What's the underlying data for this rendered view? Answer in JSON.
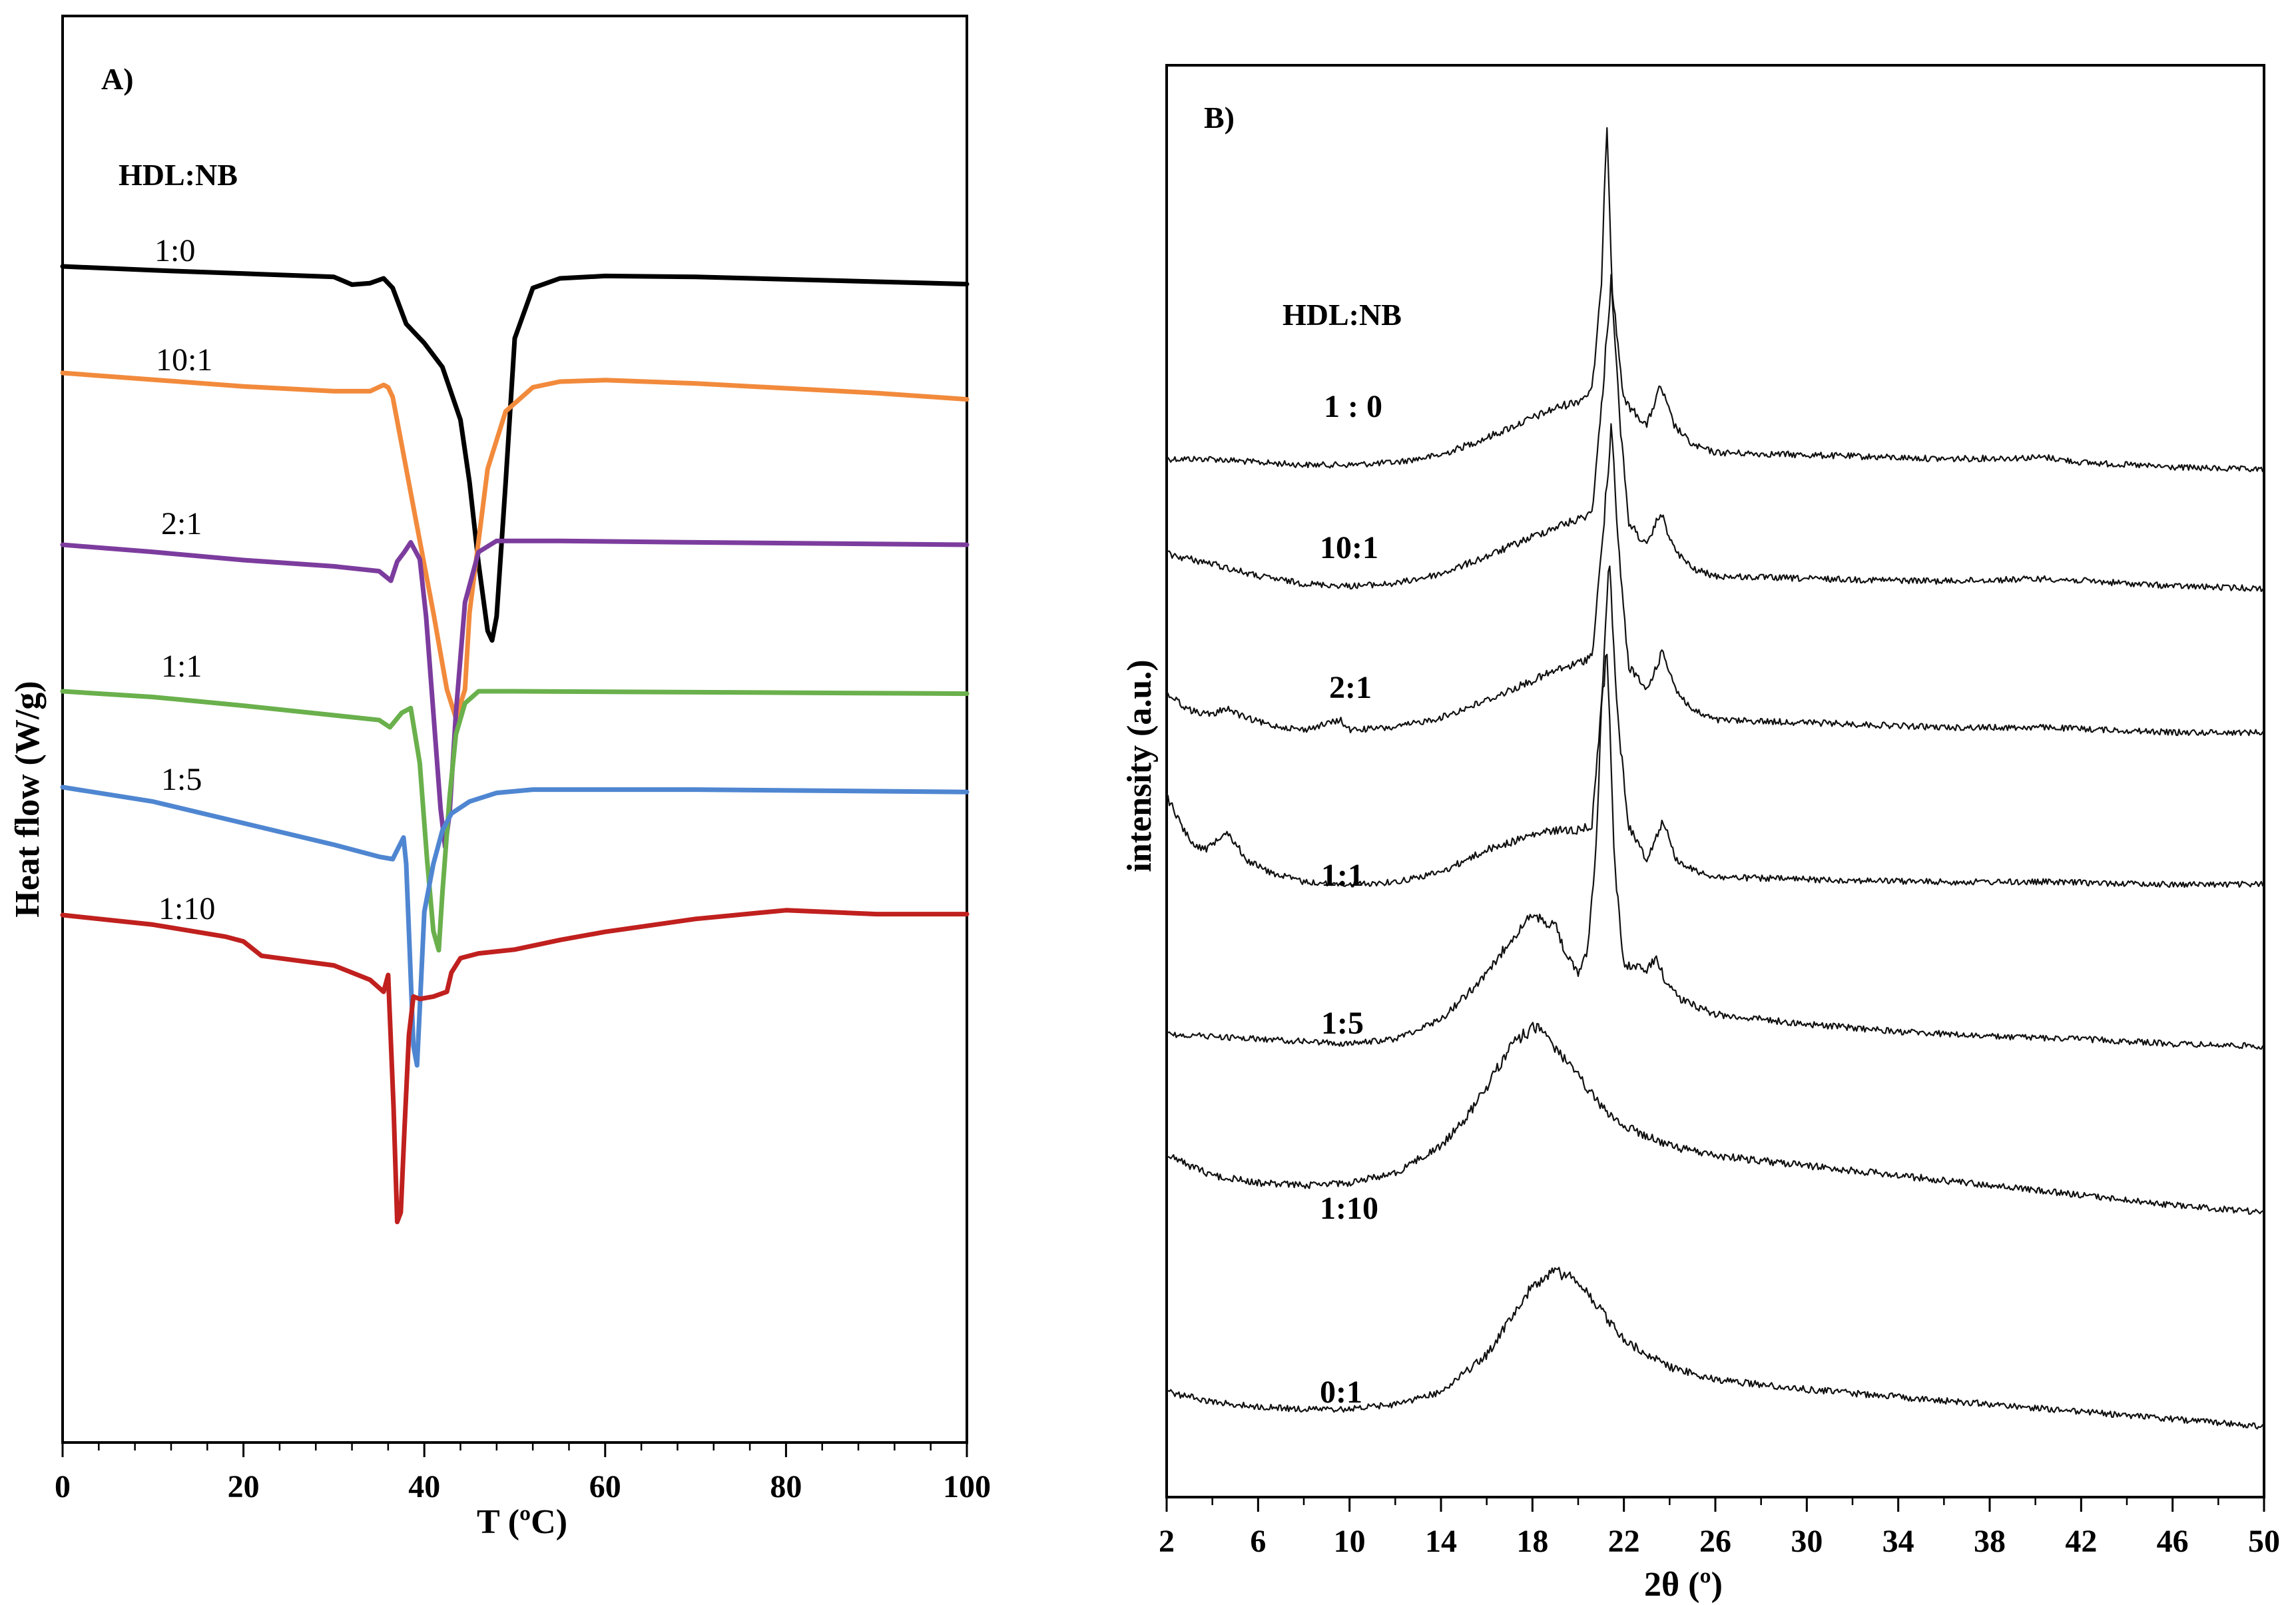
{
  "chart_data": [
    {
      "type": "line",
      "panel": "A)",
      "legend_title": "HDL:NB",
      "xlabel": "T (ºC)",
      "ylabel": "Heat flow (W/g)",
      "xlim": [
        0,
        100
      ],
      "x_ticks": [
        "0",
        "20",
        "40",
        "60",
        "80",
        "100"
      ],
      "y_units": "arbitrary offset (no tick labels)",
      "series": [
        {
          "name": "1:0",
          "color": "#000000",
          "x": [
            0,
            10,
            20,
            30,
            32,
            34,
            35.5,
            36.5,
            38,
            40,
            42,
            44,
            45,
            46,
            47,
            47.5,
            48,
            49,
            50,
            52,
            55,
            60,
            70,
            80,
            90,
            100
          ],
          "y": [
            0.0,
            -0.08,
            -0.15,
            -0.22,
            -0.38,
            -0.35,
            -0.25,
            -0.45,
            -1.2,
            -1.6,
            -2.1,
            -3.2,
            -4.5,
            -6.2,
            -7.6,
            -7.8,
            -7.3,
            -4.5,
            -1.5,
            -0.45,
            -0.25,
            -0.2,
            -0.22,
            -0.27,
            -0.32,
            -0.37
          ]
        },
        {
          "name": "10:1",
          "color": "#f28a3c",
          "x": [
            0,
            10,
            20,
            30,
            34,
            35.5,
            36,
            36.5,
            37.5,
            39,
            41,
            42.5,
            43.5,
            44.5,
            45,
            46,
            47,
            49,
            52,
            55,
            60,
            70,
            80,
            90,
            100
          ],
          "y": [
            0.0,
            -0.14,
            -0.28,
            -0.38,
            -0.38,
            -0.25,
            -0.3,
            -0.5,
            -1.5,
            -3.0,
            -5.0,
            -6.6,
            -7.2,
            -6.6,
            -5.0,
            -3.5,
            -2.0,
            -0.8,
            -0.3,
            -0.18,
            -0.15,
            -0.22,
            -0.32,
            -0.42,
            -0.55
          ]
        },
        {
          "name": "2:1",
          "color": "#7c3c9e",
          "x": [
            0,
            10,
            20,
            30,
            35,
            36.3,
            37,
            37.8,
            38.5,
            39.5,
            40.2,
            41,
            41.8,
            42.3,
            42.8,
            43.5,
            44.5,
            46,
            48,
            55,
            70,
            100
          ],
          "y": [
            0.0,
            -0.15,
            -0.32,
            -0.45,
            -0.55,
            -0.75,
            -0.35,
            -0.15,
            0.05,
            -0.3,
            -1.5,
            -3.5,
            -5.5,
            -6.3,
            -5.6,
            -3.5,
            -1.2,
            -0.15,
            0.08,
            0.08,
            0.05,
            0.0
          ]
        },
        {
          "name": "1:1",
          "color": "#6ab04c",
          "x": [
            0,
            10,
            20,
            30,
            35,
            36.2,
            37.5,
            38.5,
            39.5,
            40.3,
            41,
            41.6,
            42,
            42.8,
            43.5,
            44.5,
            46,
            50,
            70,
            100
          ],
          "y": [
            0.0,
            -0.12,
            -0.3,
            -0.5,
            -0.6,
            -0.75,
            -0.45,
            -0.35,
            -1.5,
            -3.5,
            -5.0,
            -5.4,
            -4.2,
            -2.2,
            -0.9,
            -0.25,
            0.0,
            0.0,
            -0.02,
            -0.05
          ]
        },
        {
          "name": "1:5",
          "color": "#4f86d1",
          "x": [
            0,
            10,
            20,
            30,
            35,
            36.5,
            37.3,
            37.7,
            38,
            38.4,
            38.8,
            39.2,
            39.6,
            40,
            41,
            42,
            43,
            45,
            48,
            52,
            55,
            70,
            100
          ],
          "y": [
            0.0,
            -0.3,
            -0.75,
            -1.2,
            -1.45,
            -1.5,
            -1.2,
            -1.05,
            -1.6,
            -3.5,
            -5.4,
            -5.8,
            -4.2,
            -2.6,
            -1.6,
            -0.9,
            -0.55,
            -0.3,
            -0.12,
            -0.05,
            -0.05,
            -0.05,
            -0.1
          ]
        },
        {
          "name": "1:10",
          "color": "#c0201e",
          "x": [
            0,
            10,
            18,
            20,
            22,
            24,
            30,
            34,
            35.5,
            36,
            36.6,
            37,
            37.4,
            37.8,
            38.3,
            38.8,
            39.5,
            41,
            42.5,
            43,
            44,
            46,
            50,
            55,
            60,
            70,
            80,
            90,
            100
          ],
          "y": [
            0.0,
            -0.2,
            -0.45,
            -0.55,
            -0.85,
            -0.9,
            -1.05,
            -1.35,
            -1.6,
            -1.25,
            -4.0,
            -6.4,
            -6.2,
            -4.5,
            -2.5,
            -1.7,
            -1.75,
            -1.7,
            -1.6,
            -1.2,
            -0.9,
            -0.8,
            -0.72,
            -0.52,
            -0.35,
            -0.08,
            0.1,
            0.02,
            0.02
          ]
        }
      ]
    },
    {
      "type": "line",
      "panel": "B)",
      "legend_title": "HDL:NB",
      "xlabel": "2θ (º)",
      "ylabel": "intensity (a.u.)",
      "xlim": [
        2,
        50
      ],
      "x_ticks": [
        "2",
        "6",
        "10",
        "14",
        "18",
        "22",
        "26",
        "30",
        "34",
        "38",
        "42",
        "46",
        "50"
      ],
      "y_units": "arbitrary stacked offsets (no tick labels)",
      "series": [
        {
          "name": "1 : 0",
          "x": [
            2,
            4,
            6,
            8,
            10,
            12,
            14,
            16,
            18,
            19,
            20,
            20.6,
            21.0,
            21.25,
            21.5,
            22,
            23,
            23.6,
            24.2,
            25,
            26,
            30,
            36,
            40.5,
            42,
            46,
            50
          ],
          "y": [
            0.12,
            0.12,
            0.05,
            0.0,
            0.0,
            0.05,
            0.2,
            0.55,
            0.95,
            1.15,
            1.3,
            1.5,
            3.5,
            7.1,
            3.5,
            1.3,
            0.8,
            1.6,
            0.8,
            0.4,
            0.25,
            0.2,
            0.12,
            0.15,
            0.05,
            -0.05,
            -0.1
          ]
        },
        {
          "name": "10:1",
          "x": [
            2,
            4,
            6,
            8,
            10,
            12,
            14,
            16,
            18,
            19,
            20,
            20.6,
            21.0,
            21.45,
            21.8,
            22.2,
            23,
            23.6,
            24.2,
            25,
            26,
            30,
            36,
            40.5,
            46,
            50
          ],
          "y": [
            0.65,
            0.45,
            0.2,
            0.05,
            0.0,
            0.05,
            0.25,
            0.6,
            1.0,
            1.2,
            1.35,
            1.5,
            3.5,
            6.3,
            3.5,
            1.3,
            0.8,
            1.5,
            0.75,
            0.35,
            0.2,
            0.15,
            0.1,
            0.15,
            0.0,
            -0.05
          ]
        },
        {
          "name": "2:1",
          "x": [
            2,
            3,
            4,
            4.6,
            5.4,
            6.5,
            8,
            9.6,
            10,
            12,
            14,
            16,
            18,
            19,
            20,
            20.6,
            21.0,
            21.45,
            21.8,
            22.2,
            23,
            23.7,
            24.3,
            25,
            26,
            30,
            36,
            40.5,
            46,
            50
          ],
          "y": [
            0.75,
            0.4,
            0.3,
            0.45,
            0.25,
            0.1,
            0.0,
            0.2,
            0.0,
            0.05,
            0.25,
            0.6,
            1.0,
            1.2,
            1.35,
            1.5,
            3.5,
            6.1,
            3.5,
            1.3,
            0.8,
            1.6,
            0.8,
            0.4,
            0.2,
            0.15,
            0.05,
            0.05,
            -0.05,
            -0.05
          ]
        },
        {
          "name": "1:1",
          "x": [
            2,
            3,
            3.7,
            4.6,
            5.5,
            6.5,
            8,
            10,
            12,
            14,
            16,
            18,
            19,
            20,
            20.6,
            21.0,
            21.35,
            21.7,
            22.2,
            23,
            23.7,
            24.3,
            25,
            26,
            30,
            36,
            40.5,
            46,
            50
          ],
          "y": [
            1.8,
            0.9,
            0.7,
            1.1,
            0.5,
            0.25,
            0.05,
            0.0,
            0.05,
            0.25,
            0.7,
            1.0,
            1.1,
            1.1,
            1.2,
            3.5,
            6.8,
            3.5,
            1.2,
            0.5,
            1.3,
            0.5,
            0.3,
            0.15,
            0.1,
            0.05,
            0.05,
            0.0,
            0.0
          ]
        },
        {
          "name": "1:5",
          "x": [
            2,
            4,
            6,
            8,
            10,
            12,
            14,
            16,
            17,
            18,
            19,
            19.5,
            20,
            20.4,
            20.8,
            21.0,
            21.25,
            21.6,
            22,
            23,
            23.4,
            23.8,
            24.5,
            26,
            30,
            34,
            38,
            42,
            46,
            50
          ],
          "y": [
            0.1,
            0.05,
            0.0,
            -0.05,
            -0.1,
            0.0,
            0.4,
            1.3,
            2.0,
            2.5,
            2.3,
            1.7,
            1.3,
            1.8,
            4.0,
            6.5,
            8.0,
            3.5,
            1.5,
            1.4,
            1.65,
            1.2,
            0.8,
            0.5,
            0.3,
            0.15,
            0.05,
            0.0,
            -0.1,
            -0.15
          ]
        },
        {
          "name": "1:10",
          "x": [
            2,
            4,
            6,
            8,
            10,
            12,
            14,
            15,
            16,
            17,
            18,
            18.5,
            19,
            20,
            21,
            22,
            24,
            26,
            30,
            34,
            38,
            42,
            46,
            50
          ],
          "y": [
            0.9,
            0.5,
            0.35,
            0.3,
            0.35,
            0.55,
            1.1,
            1.6,
            2.3,
            3.1,
            3.5,
            3.4,
            3.1,
            2.5,
            1.9,
            1.5,
            1.1,
            0.9,
            0.7,
            0.5,
            0.3,
            0.1,
            -0.1,
            -0.25
          ]
        },
        {
          "name": "0:1",
          "x": [
            2,
            4,
            6,
            8,
            10,
            12,
            14,
            16,
            17,
            18,
            19,
            20,
            21,
            22,
            24,
            26,
            30,
            34,
            38,
            42,
            46,
            50
          ],
          "y": [
            0.35,
            0.15,
            0.05,
            0.0,
            0.0,
            0.1,
            0.35,
            1.1,
            1.8,
            2.5,
            2.8,
            2.6,
            2.0,
            1.4,
            0.85,
            0.6,
            0.4,
            0.25,
            0.1,
            -0.05,
            -0.2,
            -0.35
          ]
        }
      ]
    }
  ]
}
